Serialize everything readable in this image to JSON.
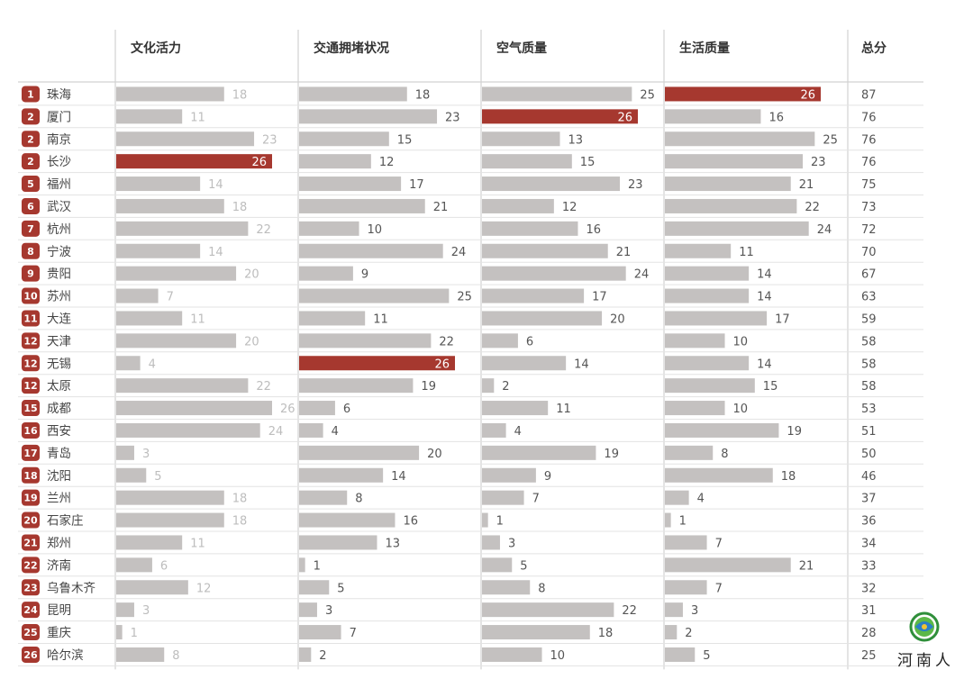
{
  "chart_data": {
    "type": "bar",
    "columns": [
      "文化活力",
      "交通拥堵状况",
      "空气质量",
      "生活质量",
      "总分"
    ],
    "rows": [
      {
        "rank": "1",
        "city": "珠海",
        "values": [
          18,
          18,
          25,
          26
        ],
        "total": 87
      },
      {
        "rank": "2",
        "city": "厦门",
        "values": [
          11,
          23,
          26,
          16
        ],
        "total": 76
      },
      {
        "rank": "2",
        "city": "南京",
        "values": [
          23,
          15,
          13,
          25
        ],
        "total": 76
      },
      {
        "rank": "2",
        "city": "长沙",
        "values": [
          26,
          12,
          15,
          23
        ],
        "total": 76
      },
      {
        "rank": "5",
        "city": "福州",
        "values": [
          14,
          17,
          23,
          21
        ],
        "total": 75
      },
      {
        "rank": "6",
        "city": "武汉",
        "values": [
          18,
          21,
          12,
          22
        ],
        "total": 73
      },
      {
        "rank": "7",
        "city": "杭州",
        "values": [
          22,
          10,
          16,
          24
        ],
        "total": 72
      },
      {
        "rank": "8",
        "city": "宁波",
        "values": [
          14,
          24,
          21,
          11
        ],
        "total": 70
      },
      {
        "rank": "9",
        "city": "贵阳",
        "values": [
          20,
          9,
          24,
          14
        ],
        "total": 67
      },
      {
        "rank": "10",
        "city": "苏州",
        "values": [
          7,
          25,
          17,
          14
        ],
        "total": 63
      },
      {
        "rank": "11",
        "city": "大连",
        "values": [
          11,
          11,
          20,
          17
        ],
        "total": 59
      },
      {
        "rank": "12",
        "city": "天津",
        "values": [
          20,
          22,
          6,
          10
        ],
        "total": 58
      },
      {
        "rank": "12",
        "city": "无锡",
        "values": [
          4,
          26,
          14,
          14
        ],
        "total": 58
      },
      {
        "rank": "12",
        "city": "太原",
        "values": [
          22,
          19,
          2,
          15
        ],
        "total": 58
      },
      {
        "rank": "15",
        "city": "成都",
        "values": [
          26,
          6,
          11,
          10
        ],
        "total": 53
      },
      {
        "rank": "16",
        "city": "西安",
        "values": [
          24,
          4,
          4,
          19
        ],
        "total": 51
      },
      {
        "rank": "17",
        "city": "青岛",
        "values": [
          3,
          20,
          19,
          8
        ],
        "total": 50
      },
      {
        "rank": "18",
        "city": "沈阳",
        "values": [
          5,
          14,
          9,
          18
        ],
        "total": 46
      },
      {
        "rank": "19",
        "city": "兰州",
        "values": [
          18,
          8,
          7,
          4
        ],
        "total": 37
      },
      {
        "rank": "20",
        "city": "石家庄",
        "values": [
          18,
          16,
          1,
          1
        ],
        "total": 36
      },
      {
        "rank": "21",
        "city": "郑州",
        "values": [
          11,
          13,
          3,
          7
        ],
        "total": 34
      },
      {
        "rank": "22",
        "city": "济南",
        "values": [
          6,
          1,
          5,
          21
        ],
        "total": 33
      },
      {
        "rank": "23",
        "city": "乌鲁木齐",
        "values": [
          12,
          5,
          8,
          7
        ],
        "total": 32
      },
      {
        "rank": "24",
        "city": "昆明",
        "values": [
          3,
          3,
          22,
          3
        ],
        "total": 31
      },
      {
        "rank": "25",
        "city": "重庆",
        "values": [
          1,
          7,
          18,
          2
        ],
        "total": 28
      },
      {
        "rank": "26",
        "city": "哈尔滨",
        "values": [
          8,
          2,
          10,
          5
        ],
        "total": 25
      }
    ],
    "highlights": [
      {
        "row": 0,
        "col": 3
      },
      {
        "row": 1,
        "col": 2
      },
      {
        "row": 3,
        "col": 0
      },
      {
        "row": 12,
        "col": 1
      }
    ],
    "colors": {
      "bar": "#c4c1c0",
      "highlight": "#a6382f",
      "rank_badge": "#a6382f",
      "grid": "#d2d2d2",
      "label_gray": "#bdbdbd",
      "label_dark": "#555555"
    },
    "max_value": 26
  },
  "watermark": {
    "text": "河南人",
    "icon": "henan-logo-icon"
  }
}
